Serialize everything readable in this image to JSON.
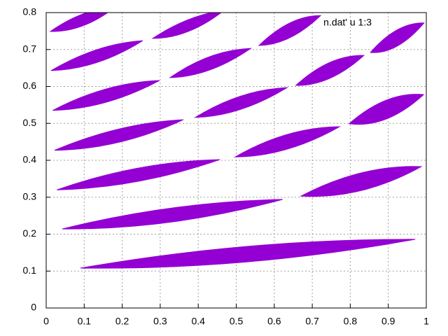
{
  "chart_data": {
    "type": "filledcurve",
    "xlim": [
      0,
      1
    ],
    "ylim": [
      0,
      0.8
    ],
    "xticks": [
      0,
      0.1,
      0.2,
      0.3,
      0.4,
      0.5,
      0.6,
      0.7,
      0.8,
      0.9,
      1
    ],
    "yticks": [
      0,
      0.1,
      0.2,
      0.3,
      0.4,
      0.5,
      0.6,
      0.7,
      0.8
    ],
    "grid": true,
    "legend": "top-right",
    "series": [
      {
        "name": "n.dat' u 1:3",
        "color": "#9400d3",
        "shapes": [
          {
            "x": [
              0.09,
              0.53,
              0.971,
              0.53
            ],
            "y": [
              0.108,
              0.167,
              0.186,
              0.125
            ]
          },
          {
            "x": [
              0.042,
              0.331,
              0.622,
              0.331
            ],
            "y": [
              0.214,
              0.271,
              0.294,
              0.233
            ]
          },
          {
            "x": [
              0.028,
              0.242,
              0.457,
              0.242
            ],
            "y": [
              0.32,
              0.379,
              0.402,
              0.343
            ]
          },
          {
            "x": [
              0.022,
              0.192,
              0.361,
              0.192
            ],
            "y": [
              0.427,
              0.485,
              0.51,
              0.449
            ]
          },
          {
            "x": [
              0.017,
              0.157,
              0.298,
              0.157
            ],
            "y": [
              0.535,
              0.593,
              0.616,
              0.557
            ]
          },
          {
            "x": [
              0.013,
              0.134,
              0.254,
              0.134
            ],
            "y": [
              0.643,
              0.7,
              0.724,
              0.665
            ]
          },
          {
            "x": [
              0.011,
              0.096,
              0.182,
              0.096
            ],
            "y": [
              0.749,
              0.796,
              0.815,
              0.764
            ]
          },
          {
            "x": [
              0.28,
              0.374,
              0.468,
              0.374
            ],
            "y": [
              0.73,
              0.781,
              0.806,
              0.749
            ]
          },
          {
            "x": [
              0.326,
              0.431,
              0.538,
              0.431
            ],
            "y": [
              0.624,
              0.681,
              0.703,
              0.645
            ]
          },
          {
            "x": [
              0.392,
              0.512,
              0.634,
              0.512
            ],
            "y": [
              0.516,
              0.574,
              0.597,
              0.538
            ]
          },
          {
            "x": [
              0.497,
              0.634,
              0.772,
              0.634
            ],
            "y": [
              0.409,
              0.47,
              0.491,
              0.43
            ]
          },
          {
            "x": [
              0.67,
              0.829,
              0.987,
              0.829
            ],
            "y": [
              0.303,
              0.366,
              0.383,
              0.318
            ]
          },
          {
            "x": [
              0.56,
              0.641,
              0.722,
              0.641
            ],
            "y": [
              0.711,
              0.772,
              0.792,
              0.732
            ]
          },
          {
            "x": [
              0.657,
              0.746,
              0.836,
              0.746
            ],
            "y": [
              0.603,
              0.665,
              0.684,
              0.622
            ]
          },
          {
            "x": [
              0.797,
              0.895,
              0.993,
              0.895
            ],
            "y": [
              0.499,
              0.563,
              0.578,
              0.512
            ]
          },
          {
            "x": [
              0.853,
              0.923,
              0.994,
              0.923
            ],
            "y": [
              0.692,
              0.753,
              0.772,
              0.709
            ]
          }
        ]
      }
    ]
  }
}
